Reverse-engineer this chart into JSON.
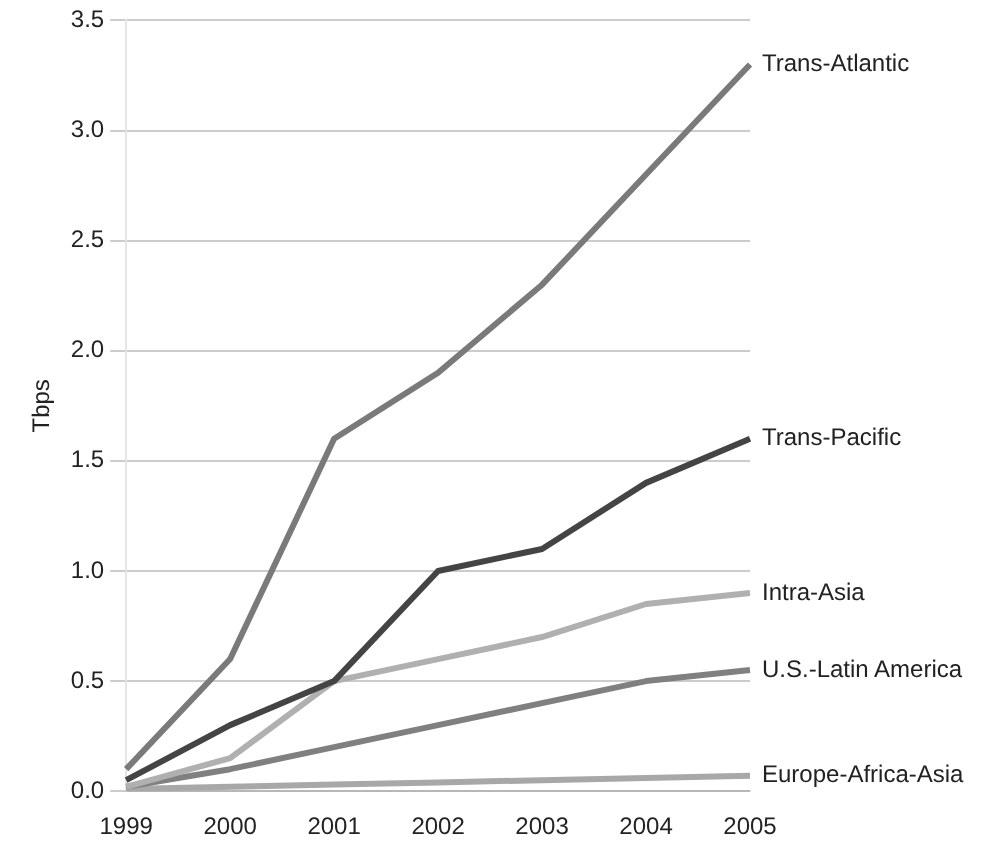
{
  "chart_data": {
    "type": "line",
    "ylabel": "Tbps",
    "categories": [
      "1999",
      "2000",
      "2001",
      "2002",
      "2003",
      "2004",
      "2005"
    ],
    "series": [
      {
        "name": "Trans-Atlantic",
        "color": "#7a7a7a",
        "values": [
          0.1,
          0.6,
          1.6,
          1.9,
          2.3,
          2.8,
          3.3
        ]
      },
      {
        "name": "Trans-Pacific",
        "color": "#444444",
        "values": [
          0.05,
          0.3,
          0.5,
          1.0,
          1.1,
          1.4,
          1.6
        ]
      },
      {
        "name": "Intra-Asia",
        "color": "#b0b0b0",
        "values": [
          0.02,
          0.15,
          0.5,
          0.6,
          0.7,
          0.85,
          0.9
        ]
      },
      {
        "name": "U.S.-Latin America",
        "color": "#808080",
        "values": [
          0.02,
          0.1,
          0.2,
          0.3,
          0.4,
          0.5,
          0.55
        ]
      },
      {
        "name": "Europe-Africa-Asia",
        "color": "#a8a8a8",
        "values": [
          0.01,
          0.02,
          0.03,
          0.04,
          0.05,
          0.06,
          0.07
        ]
      }
    ],
    "ylim": [
      0,
      3.5
    ],
    "yticks": [
      {
        "value": 0,
        "label": "0.0"
      },
      {
        "value": 0.5,
        "label": "0.5"
      },
      {
        "value": 1,
        "label": "1.0"
      },
      {
        "value": 1.5,
        "label": "1.5"
      },
      {
        "value": 2,
        "label": "2.0"
      },
      {
        "value": 2.5,
        "label": "2.5"
      },
      {
        "value": 3,
        "label": "3.0"
      },
      {
        "value": 3.5,
        "label": "3.5"
      }
    ],
    "grid": "y",
    "marker": "none",
    "line_style": "solid"
  }
}
